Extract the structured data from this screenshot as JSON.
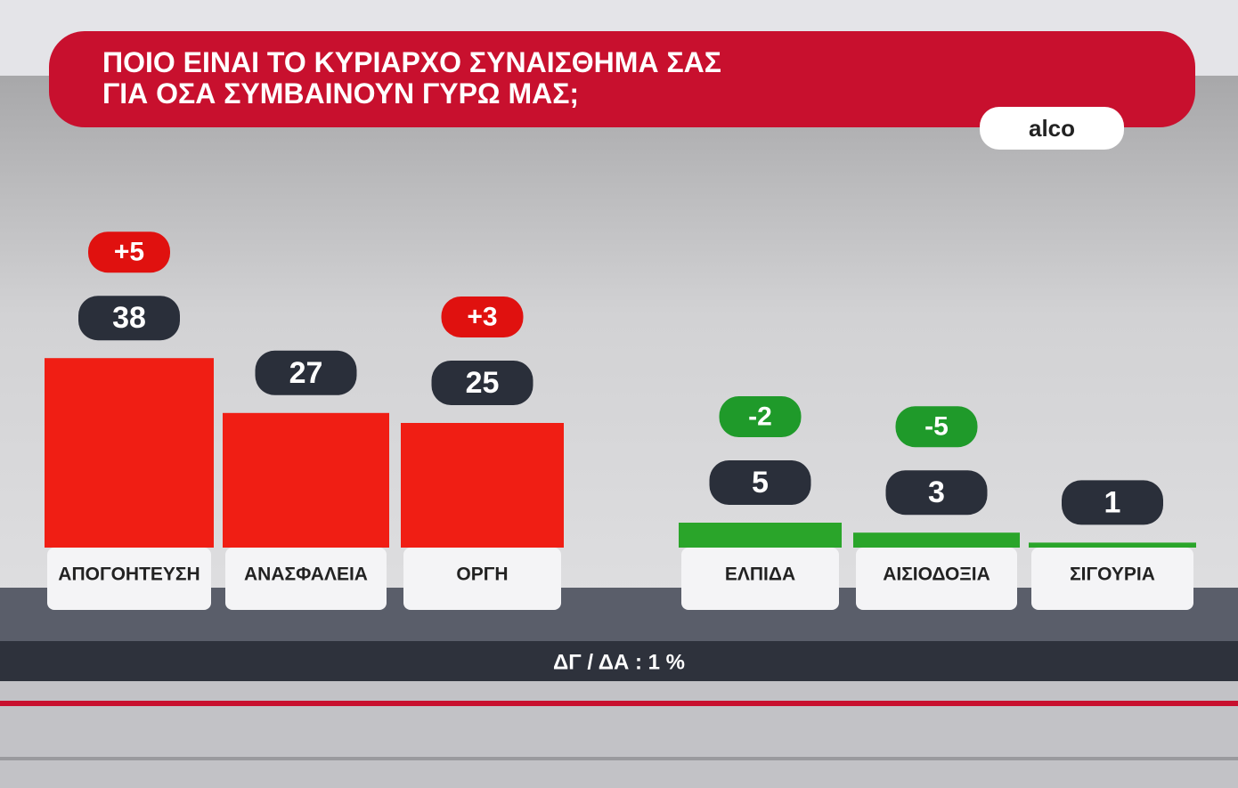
{
  "chart_data": {
    "type": "bar",
    "title": [
      "ΠΟΙΟ ΕΙΝΑΙ ΤΟ ΚΥΡΙΑΡΧΟ ΣΥΝΑΙΣΘΗΜΑ ΣΑΣ",
      "ΓΙΑ ΟΣΑ ΣΥΜΒΑΙΝΟΥΝ ΓΥΡΩ ΜΑΣ;"
    ],
    "source": "alco",
    "categories": [
      "ΑΠΟΓΟΗΤΕΥΣΗ",
      "ΑΝΑΣΦΑΛΕΙΑ",
      "ΟΡΓΗ",
      "ΕΛΠΙΔΑ",
      "ΑΙΣΙΟΔΟΞΙΑ",
      "ΣΙΓΟΥΡΙΑ"
    ],
    "values": [
      38,
      27,
      25,
      5,
      3,
      1
    ],
    "colors": [
      "#f01e14",
      "#f01e14",
      "#f01e14",
      "#2aa52a",
      "#2aa52a",
      "#2aa52a"
    ],
    "changes": [
      {
        "value": 5,
        "label": "+5"
      },
      null,
      {
        "value": 3,
        "label": "+3"
      },
      -2,
      -5,
      null
    ],
    "change_colors": {
      "up": "#e0110f",
      "down": "#1f9a2a"
    },
    "note": "ΔΓ / ΔΑ : 1 %"
  }
}
